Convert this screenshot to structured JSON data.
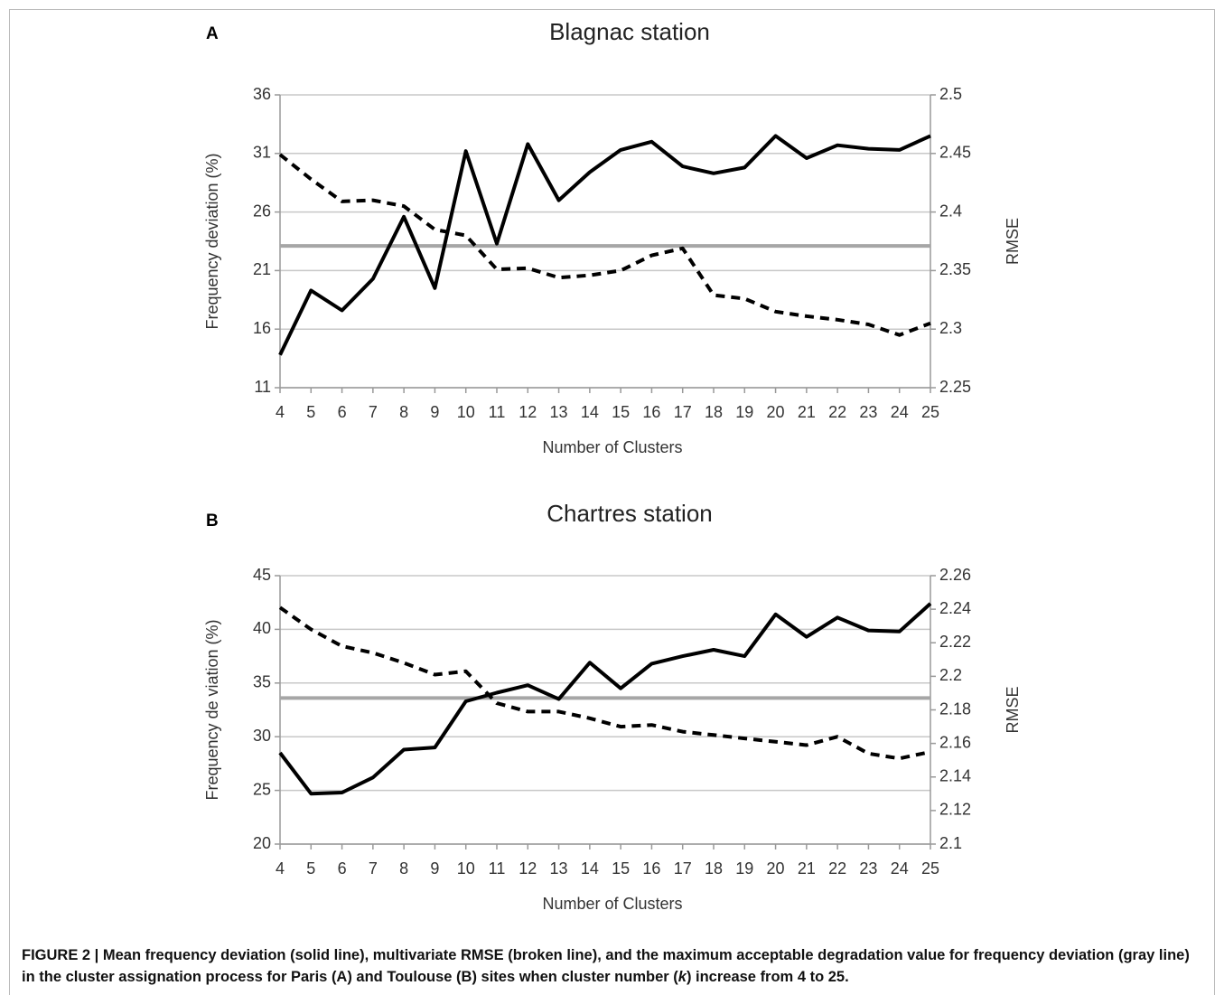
{
  "chart_data": [
    {
      "type": "line",
      "panel_label": "A",
      "title": "Blagnac station",
      "xlabel": "Number of Clusters",
      "ylabel": "Frequency deviation (%)",
      "y2label": "RMSE",
      "x": [
        4,
        5,
        6,
        7,
        8,
        9,
        10,
        11,
        12,
        13,
        14,
        15,
        16,
        17,
        18,
        19,
        20,
        21,
        22,
        23,
        24,
        25
      ],
      "xlim": [
        4,
        25
      ],
      "xticks": [
        4,
        5,
        6,
        7,
        8,
        9,
        10,
        11,
        12,
        13,
        14,
        15,
        16,
        17,
        18,
        19,
        20,
        21,
        22,
        23,
        24,
        25
      ],
      "ylim": [
        11,
        36
      ],
      "yticks": [
        11,
        16,
        21,
        26,
        31,
        36
      ],
      "y2lim": [
        2.25,
        2.5
      ],
      "y2ticks": [
        2.25,
        2.3,
        2.35,
        2.4,
        2.45,
        2.5
      ],
      "grid": true,
      "series": [
        {
          "color": "#000000",
          "dashed": false,
          "values": [
            13.8,
            19.3,
            17.6,
            20.3,
            25.6,
            19.5,
            31.2,
            23.3,
            31.8,
            27.0,
            29.4,
            31.3,
            32.0,
            29.9,
            29.3,
            29.8,
            32.5,
            30.6,
            31.7,
            31.4,
            31.3,
            32.5
          ]
        },
        {
          "color": "#000000",
          "dashed": true,
          "axis": "y2",
          "values": [
            2.449,
            2.428,
            2.409,
            2.41,
            2.405,
            2.385,
            2.38,
            2.351,
            2.352,
            2.344,
            2.346,
            2.35,
            2.363,
            2.369,
            2.329,
            2.326,
            2.315,
            2.311,
            2.308,
            2.304,
            2.295,
            2.305
          ]
        }
      ],
      "reference_line": {
        "value": 23.1,
        "color": "#a6a6a6"
      }
    },
    {
      "type": "line",
      "panel_label": "B",
      "title": "Chartres station",
      "xlabel": "Number of Clusters",
      "ylabel": "Frequency de viation (%)",
      "y2label": "RMSE",
      "x": [
        4,
        5,
        6,
        7,
        8,
        9,
        10,
        11,
        12,
        13,
        14,
        15,
        16,
        17,
        18,
        19,
        20,
        21,
        22,
        23,
        24,
        25
      ],
      "xlim": [
        4,
        25
      ],
      "xticks": [
        4,
        5,
        6,
        7,
        8,
        9,
        10,
        11,
        12,
        13,
        14,
        15,
        16,
        17,
        18,
        19,
        20,
        21,
        22,
        23,
        24,
        25
      ],
      "ylim": [
        20,
        45
      ],
      "yticks": [
        20,
        25,
        30,
        35,
        40,
        45
      ],
      "y2lim": [
        2.1,
        2.26
      ],
      "y2ticks": [
        2.1,
        2.12,
        2.14,
        2.16,
        2.18,
        2.2,
        2.22,
        2.24,
        2.26
      ],
      "grid": true,
      "series": [
        {
          "color": "#000000",
          "dashed": false,
          "values": [
            28.5,
            24.7,
            24.8,
            26.2,
            28.8,
            29.0,
            33.3,
            34.1,
            34.8,
            33.5,
            36.9,
            34.5,
            36.8,
            37.5,
            38.1,
            37.5,
            41.4,
            39.3,
            41.1,
            39.9,
            39.8,
            42.4
          ]
        },
        {
          "color": "#000000",
          "dashed": true,
          "axis": "y2",
          "values": [
            2.241,
            2.228,
            2.218,
            2.214,
            2.208,
            2.201,
            2.203,
            2.184,
            2.179,
            2.179,
            2.175,
            2.17,
            2.171,
            2.167,
            2.165,
            2.163,
            2.161,
            2.159,
            2.164,
            2.154,
            2.151,
            2.155
          ]
        }
      ],
      "reference_line": {
        "value": 33.6,
        "color": "#a6a6a6"
      }
    }
  ],
  "caption": [
    "FIGURE 2 | Mean frequency deviation (solid line), multivariate RMSE (broken line), and the maximum acceptable degradation value for frequency deviation (gray line) in the cluster assignation process for Paris (A) and Toulouse (B) sites when cluster number (",
    "k",
    ") increase from 4 to 25."
  ]
}
